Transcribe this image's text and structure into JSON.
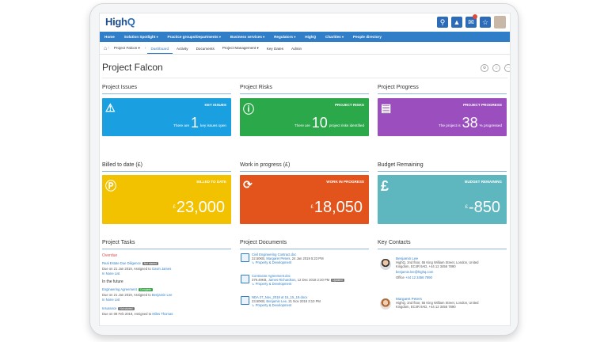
{
  "app": {
    "logo_text": "High",
    "logo_q": "Q"
  },
  "nav": [
    {
      "label": "Home"
    },
    {
      "label": "Solution Spotlight",
      "caret": "▾"
    },
    {
      "label": "Practice groups/Departments",
      "caret": "▾"
    },
    {
      "label": "Business services",
      "caret": "▾"
    },
    {
      "label": "Regulators",
      "caret": "▾"
    },
    {
      "label": "HighQ"
    },
    {
      "label": "Charities",
      "caret": "▾"
    },
    {
      "label": "People directory"
    }
  ],
  "subnav": {
    "project": "Project Falcon ▾",
    "items": [
      "Dashboard",
      "Activity",
      "Documents",
      "Project Management ▾",
      "Key Dates",
      "Admin"
    ]
  },
  "page": {
    "title": "Project Falcon"
  },
  "sections": {
    "issues": "Project Issues",
    "risks": "Project Risks",
    "progress": "Project Progress",
    "billed": "Billed to date (£)",
    "wip": "Work in progress (£)",
    "budget": "Budget Remaining",
    "tasks": "Project Tasks",
    "documents": "Project Documents",
    "contacts": "Key Contacts"
  },
  "cards": {
    "issues": {
      "label": "KEY ISSUES",
      "pre": "There are",
      "value": "1",
      "post": "key issues open",
      "color": "#1aa0e0"
    },
    "risks": {
      "label": "PROJECT RISKS",
      "pre": "There are",
      "value": "10",
      "post": "project risks identified",
      "color": "#2aa84a"
    },
    "progress": {
      "label": "PROJECT PROGRESS",
      "pre": "The project is",
      "value": "38",
      "post": "% progressed",
      "color": "#9b4fbf"
    },
    "billed": {
      "label": "BILLED TO DATE",
      "cur": "£",
      "value": "23,000",
      "color": "#f2c200"
    },
    "wip": {
      "label": "WORK IN PROGRESS",
      "cur": "£",
      "value": "18,050",
      "color": "#e2541c"
    },
    "budget": {
      "label": "BUDGET REMAINING",
      "cur": "£",
      "value": "-850",
      "color": "#5eb7be"
    }
  },
  "tasks": {
    "overdue": "Overdue",
    "t1_title": "Real Estate Due Diligence",
    "t1_tag": "Not started",
    "t1_meta": "Due on 21 Jan 2019, Assigned to",
    "t1_person": "Gavin James",
    "t1_list": "In None List",
    "future": "In the future",
    "t2_title": "Engineering Agreement",
    "t2_tag": "Complete",
    "t2_meta": "Due on 21 Jan 2019, Assigned to",
    "t2_person": "Benjamin Lee",
    "t2_list": "In None List",
    "t3_title": "Insurance",
    "t3_tag": "Not started",
    "t3_meta": "Due on 08 Feb 2019, Assigned to",
    "t3_person": "Miles Thomas"
  },
  "documents": [
    {
      "name": "Civil Engineering Contract.doc",
      "meta": "22.50KB,",
      "author": "Margaret Peters",
      "date": ", 24 Jan 2019 5:23 PM",
      "folder": "Property & Development"
    },
    {
      "name": "Contractor Agreement.doc",
      "meta": "379.49KB,",
      "author": "James Richardson",
      "date": ", 12 Dec 2018 2:20 PM",
      "tag": "Updated",
      "folder": "Property & Development"
    },
    {
      "name": "NDA 27_Nov_2018 at 15_15_19.docx",
      "meta": "23.50KB,",
      "author": "Benjamin Lee",
      "date": ", 21 Nov 2018 3:10 PM",
      "folder": "Property & Development"
    }
  ],
  "contacts": [
    {
      "name": "Benjamin Lee",
      "addr1": "HighQ, 2nd floor, 55 King William Street, London, United",
      "addr2": "Kingdom, EC4R 9AD, +44 12 3456 7890",
      "email": "benjamin.lee@highq.com",
      "office_label": "Office",
      "office": "+44 12 3456 7890"
    },
    {
      "name": "Margaret Peters",
      "addr1": "HighQ, 2nd floor, 55 King William Street, London, United",
      "addr2": "Kingdom, EC4R 9AD, +44 12 3456 7890"
    }
  ]
}
